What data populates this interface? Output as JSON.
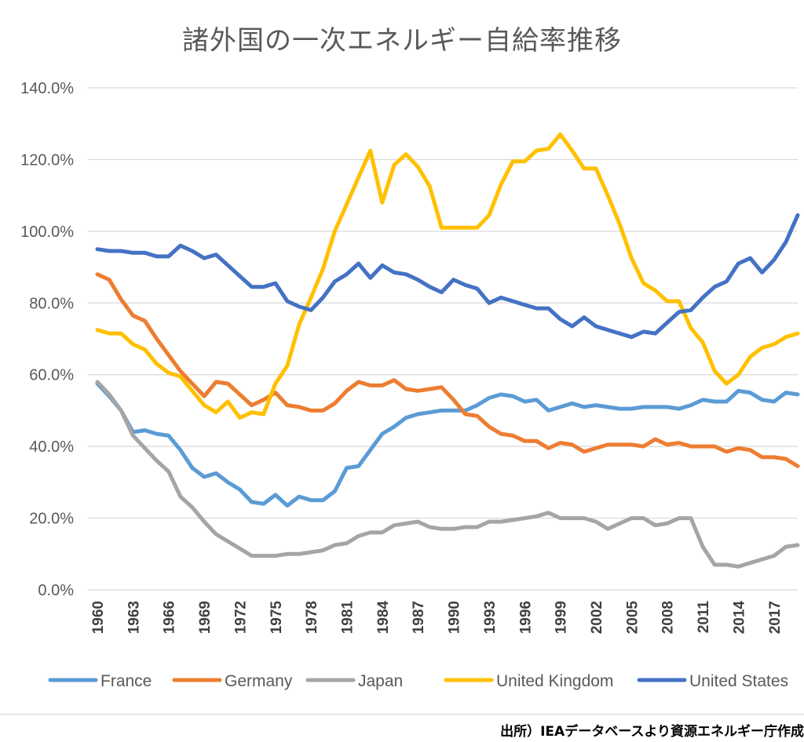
{
  "chart_data": {
    "type": "line",
    "title": "諸外国の一次エネルギー自給率推移",
    "xlabel": "",
    "ylabel": "",
    "ylim": [
      0,
      140
    ],
    "y_ticks": [
      "0.0%",
      "20.0%",
      "40.0%",
      "60.0%",
      "80.0%",
      "100.0%",
      "120.0%",
      "140.0%"
    ],
    "x": [
      1960,
      1961,
      1962,
      1963,
      1964,
      1965,
      1966,
      1967,
      1968,
      1969,
      1970,
      1971,
      1972,
      1973,
      1974,
      1975,
      1976,
      1977,
      1978,
      1979,
      1980,
      1981,
      1982,
      1983,
      1984,
      1985,
      1986,
      1987,
      1988,
      1989,
      1990,
      1991,
      1992,
      1993,
      1994,
      1995,
      1996,
      1997,
      1998,
      1999,
      2000,
      2001,
      2002,
      2003,
      2004,
      2005,
      2006,
      2007,
      2008,
      2009,
      2010,
      2011,
      2012,
      2013,
      2014,
      2015,
      2016,
      2017,
      2018,
      2019
    ],
    "x_tick_labels": [
      "1960",
      "1963",
      "1966",
      "1969",
      "1972",
      "1975",
      "1978",
      "1981",
      "1984",
      "1987",
      "1990",
      "1993",
      "1996",
      "1999",
      "2002",
      "2005",
      "2008",
      "2011",
      "2014",
      "2017"
    ],
    "grid": "horizontal",
    "legend_position": "bottom",
    "series": [
      {
        "name": "France",
        "color": "#5b9bd5",
        "values": [
          57.5,
          54,
          50,
          44,
          44.5,
          43.5,
          43,
          39,
          34,
          31.5,
          32.5,
          30,
          28,
          24.5,
          24,
          26.5,
          23.5,
          26,
          25,
          25,
          27.5,
          34,
          34.5,
          39,
          43.5,
          45.5,
          48,
          49,
          49.5,
          50,
          50,
          50,
          51.5,
          53.5,
          54.5,
          54,
          52.5,
          53,
          50,
          51,
          52,
          51,
          51.5,
          51,
          50.5,
          50.5,
          51,
          51,
          51,
          50.5,
          51.5,
          53,
          52.5,
          52.5,
          55.5,
          55,
          53,
          52.5,
          55,
          54.5
        ]
      },
      {
        "name": "Germany",
        "color": "#ed7d31",
        "values": [
          88,
          86.5,
          81,
          76.5,
          75,
          70,
          65.5,
          61,
          57.5,
          54,
          58,
          57.5,
          54.5,
          51.5,
          53,
          55,
          51.5,
          51,
          50,
          50,
          52,
          55.5,
          58,
          57,
          57,
          58.5,
          56,
          55.5,
          56,
          56.5,
          53,
          49,
          48.5,
          45.5,
          43.5,
          43,
          41.5,
          41.5,
          39.5,
          41,
          40.5,
          38.5,
          39.5,
          40.5,
          40.5,
          40.5,
          40,
          42,
          40.5,
          41,
          40,
          40,
          40,
          38.5,
          39.5,
          39,
          37,
          37,
          36.5,
          34.5
        ]
      },
      {
        "name": "Japan",
        "color": "#a5a5a5",
        "values": [
          58,
          54.5,
          50,
          43,
          39.5,
          36,
          33,
          26,
          23,
          19,
          15.5,
          13.5,
          11.5,
          9.5,
          9.5,
          9.5,
          10,
          10,
          10.5,
          11,
          12.5,
          13,
          15,
          16,
          16,
          18,
          18.5,
          19,
          17.5,
          17,
          17,
          17.5,
          17.5,
          19,
          19,
          19.5,
          20,
          20.5,
          21.5,
          20,
          20,
          20,
          19,
          17,
          18.5,
          20,
          20,
          18,
          18.5,
          20,
          20,
          12,
          7,
          7,
          6.5,
          7.5,
          8.5,
          9.5,
          12,
          12.5
        ]
      },
      {
        "name": "United Kingdom",
        "color": "#ffc000",
        "values": [
          72.5,
          71.5,
          71.5,
          68.5,
          67,
          63,
          60.5,
          59.5,
          55.5,
          51.5,
          49.5,
          52.5,
          48,
          49.5,
          49,
          57.5,
          62.5,
          74,
          81.5,
          89.5,
          100,
          107.5,
          115,
          122.5,
          108,
          118.5,
          121.5,
          118,
          112.5,
          101,
          101,
          101,
          101,
          104.5,
          113,
          119.5,
          119.5,
          122.5,
          123,
          127,
          122.5,
          117.5,
          117.5,
          110,
          102,
          92.5,
          85.5,
          83.5,
          80.5,
          80.5,
          73,
          69,
          61,
          57.5,
          60,
          65,
          67.5,
          68.5,
          70.5,
          71.5
        ]
      },
      {
        "name": "United States",
        "color": "#4472c4",
        "values": [
          95,
          94.5,
          94.5,
          94,
          94,
          93,
          93,
          96,
          94.5,
          92.5,
          93.5,
          90.5,
          87.5,
          84.5,
          84.5,
          85.5,
          80.5,
          79,
          78,
          81.5,
          86,
          88,
          91,
          87,
          90.5,
          88.5,
          88,
          86.5,
          84.5,
          83,
          86.5,
          85,
          84,
          80,
          81.5,
          80.5,
          79.5,
          78.5,
          78.5,
          75.5,
          73.5,
          76,
          73.5,
          72.5,
          71.5,
          70.5,
          72,
          71.5,
          74.5,
          77.5,
          78,
          81.5,
          84.5,
          86,
          91,
          92.5,
          88.5,
          92,
          97,
          104.5
        ]
      }
    ]
  },
  "footer": {
    "source": "出所）IEAデータベースより資源エネルギー庁作成"
  }
}
